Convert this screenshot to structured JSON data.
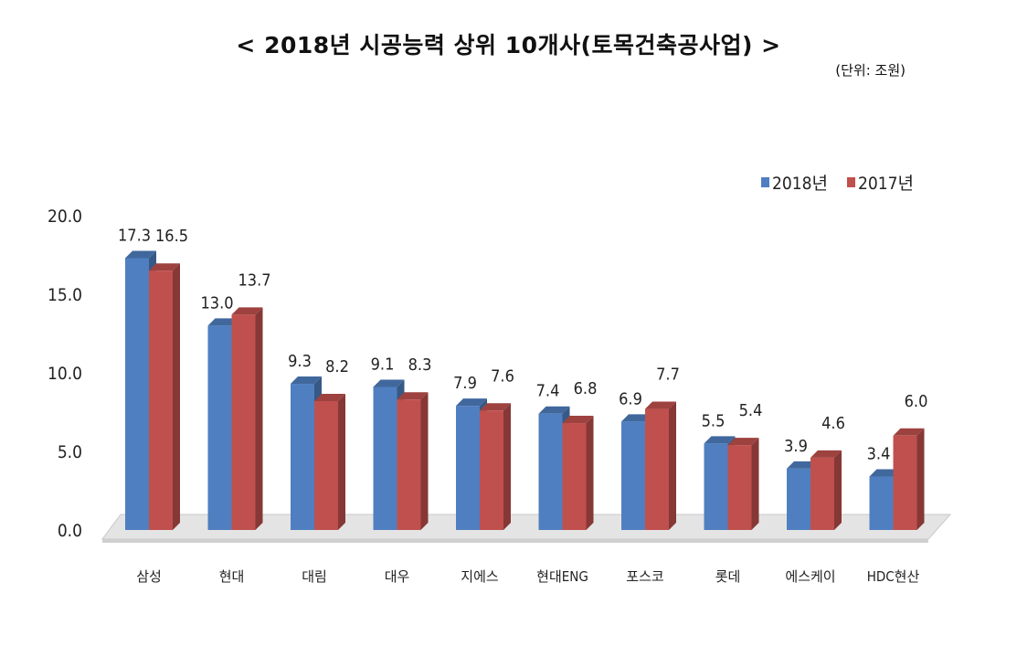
{
  "header": {
    "title": "< 2018년 시공능력 상위 10개사(토목건축공사업) >",
    "unit": "(단위: 조원)"
  },
  "chart_data": {
    "type": "bar",
    "categories": [
      "삼성",
      "현대",
      "대림",
      "대우",
      "지에스",
      "현대ENG",
      "포스코",
      "롯데",
      "에스케이",
      "HDC현산"
    ],
    "series": [
      {
        "name": "2018년",
        "values": [
          17.3,
          13.0,
          9.3,
          9.1,
          7.9,
          7.4,
          6.9,
          5.5,
          3.9,
          3.4
        ],
        "color": "#4f7fc0"
      },
      {
        "name": "2017년",
        "values": [
          16.5,
          13.7,
          8.2,
          8.3,
          7.6,
          6.8,
          7.7,
          5.4,
          4.6,
          6.0
        ],
        "color": "#c0504d"
      }
    ],
    "ylim": [
      0,
      20
    ],
    "yticks": [
      "0.0",
      "5.0",
      "10.0",
      "15.0",
      "20.0"
    ],
    "value_labels": [
      [
        "17.3",
        "13.0",
        "9.3",
        "9.1",
        "7.9",
        "7.4",
        "6.9",
        "5.5",
        "3.9",
        "3.4"
      ],
      [
        "16.5",
        "13.7",
        "8.2",
        "8.3",
        "7.6",
        "6.8",
        "7.7",
        "5.4",
        "4.6",
        "6.0"
      ]
    ],
    "legend_position": "top-right",
    "grid": false
  }
}
